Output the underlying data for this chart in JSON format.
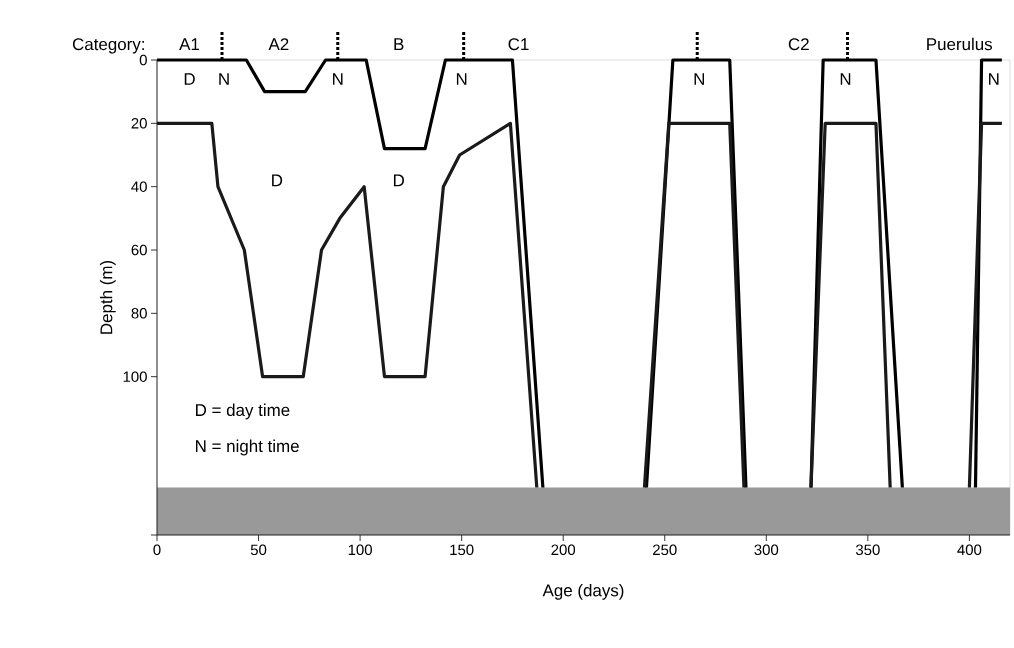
{
  "chart_data": {
    "type": "line",
    "xlabel": "Age (days)",
    "ylabel": "Depth (m)",
    "x2label": "Category:",
    "xlim": [
      0,
      420
    ],
    "xticks": [
      0,
      50,
      100,
      150,
      200,
      250,
      300,
      350,
      400
    ],
    "ylim": [
      150,
      0
    ],
    "yticks": [
      0,
      20,
      40,
      60,
      80,
      100,
      {
        "value": 150,
        "label": null
      }
    ],
    "series": [
      {
        "color": "#000000",
        "x": [
          0,
          44,
          53,
          73,
          83,
          103,
          112,
          132,
          142,
          175,
          190,
          215,
          241,
          254,
          282,
          290,
          305,
          322,
          328,
          354,
          367,
          385,
          403,
          406,
          416
        ],
        "values": [
          0,
          0,
          10,
          10,
          0,
          0,
          28,
          28,
          0,
          0,
          135,
          null,
          135,
          0,
          0,
          135,
          null,
          135,
          0,
          0,
          135,
          null,
          135,
          0,
          0
        ]
      },
      {
        "color": "#1a1a1a",
        "x": [
          0,
          27,
          30,
          43,
          52,
          72,
          81,
          90,
          102,
          112,
          132,
          141,
          149,
          174,
          187,
          215,
          240,
          252,
          282,
          289,
          305,
          322,
          329,
          354,
          361,
          385,
          400,
          406,
          416
        ],
        "values": [
          20,
          20,
          40,
          60,
          100,
          100,
          60,
          50,
          40,
          100,
          100,
          40,
          30,
          20,
          135,
          null,
          135,
          20,
          20,
          135,
          null,
          135,
          20,
          20,
          135,
          null,
          135,
          20,
          20
        ]
      }
    ],
    "bands": [
      {
        "axis": "y",
        "from": 135,
        "to": 150,
        "label": null,
        "color": "#999999"
      }
    ],
    "annotations": [
      "A1",
      "A2",
      "B",
      "C1",
      "C2",
      "Puerulus",
      "N",
      "N",
      "N",
      "N",
      "N",
      "N",
      "D",
      "D",
      "D",
      "D = day time",
      "N = night time"
    ]
  }
}
